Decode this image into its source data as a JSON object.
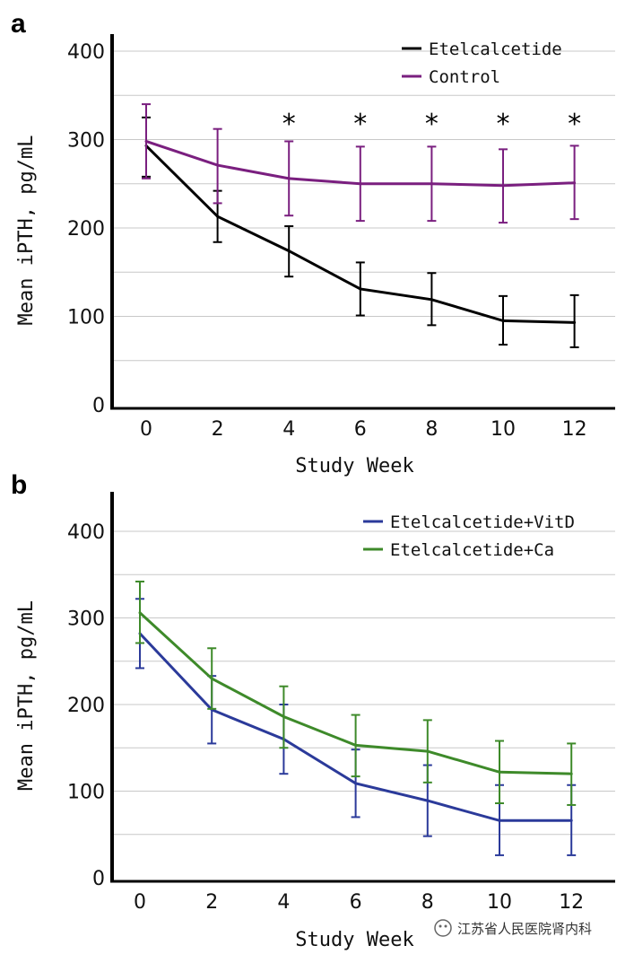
{
  "chart_data": [
    {
      "type": "line",
      "panel": "a",
      "title": "",
      "xlabel": "Study Week",
      "ylabel": "Mean iPTH, pg/mL",
      "x": [
        0,
        2,
        4,
        6,
        8,
        10,
        12
      ],
      "x_ticks": [
        "0",
        "2",
        "4",
        "6",
        "8",
        "10",
        "12"
      ],
      "y_ticks": [
        "0",
        "100",
        "200",
        "300",
        "400"
      ],
      "ylim": [
        0,
        420
      ],
      "grid": true,
      "legend_position": "top-right",
      "series": [
        {
          "name": "Etelcalcetide",
          "color": "#000000",
          "values": [
            293,
            213,
            174,
            131,
            119,
            95,
            93
          ],
          "err_upper": [
            325,
            242,
            202,
            161,
            149,
            123,
            124
          ],
          "err_lower": [
            258,
            184,
            145,
            101,
            90,
            68,
            65
          ]
        },
        {
          "name": "Control",
          "color": "#7a1f7f",
          "values": [
            298,
            271,
            256,
            250,
            250,
            248,
            251
          ],
          "err_upper": [
            340,
            312,
            298,
            292,
            292,
            289,
            293
          ],
          "err_lower": [
            256,
            228,
            214,
            208,
            208,
            206,
            210
          ]
        }
      ],
      "annotations": [
        {
          "x": 4,
          "text": "*"
        },
        {
          "x": 6,
          "text": "*"
        },
        {
          "x": 8,
          "text": "*"
        },
        {
          "x": 10,
          "text": "*"
        },
        {
          "x": 12,
          "text": "*"
        }
      ]
    },
    {
      "type": "line",
      "panel": "b",
      "title": "",
      "xlabel": "Study Week",
      "ylabel": "Mean iPTH, pg/mL",
      "x": [
        0,
        2,
        4,
        6,
        8,
        10,
        12
      ],
      "x_ticks": [
        "0",
        "2",
        "4",
        "6",
        "8",
        "10",
        "12"
      ],
      "y_ticks": [
        "0",
        "100",
        "200",
        "300",
        "400"
      ],
      "ylim": [
        0,
        430
      ],
      "grid": true,
      "legend_position": "top-right",
      "series": [
        {
          "name": "Etelcalcetide+VitD",
          "color": "#2b3a9a",
          "values": [
            282,
            194,
            160,
            109,
            89,
            66,
            66
          ],
          "err_upper": [
            322,
            233,
            200,
            148,
            130,
            107,
            107
          ],
          "err_lower": [
            242,
            155,
            120,
            70,
            48,
            26,
            26
          ]
        },
        {
          "name": "Etelcalcetide+Ca",
          "color": "#3e8a2a",
          "values": [
            306,
            230,
            186,
            153,
            146,
            122,
            120
          ],
          "err_upper": [
            342,
            265,
            221,
            188,
            182,
            158,
            155
          ],
          "err_lower": [
            271,
            195,
            150,
            117,
            110,
            86,
            84
          ]
        }
      ],
      "annotations": []
    }
  ],
  "panel_labels": [
    "a",
    "b"
  ],
  "watermark": {
    "icon": "wechat-icon",
    "text": "江苏省人民医院肾内科"
  }
}
